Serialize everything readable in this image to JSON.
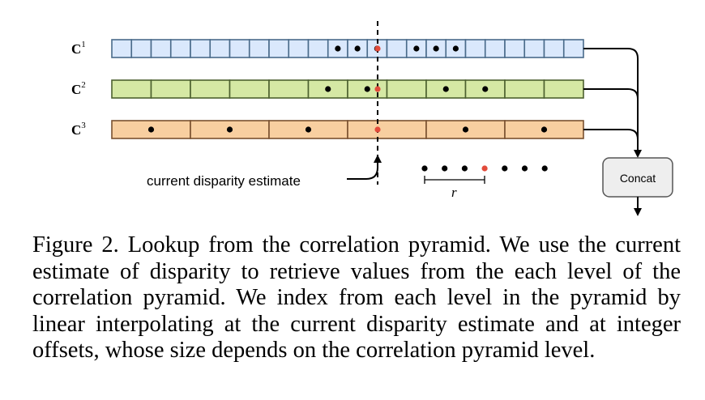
{
  "levels": [
    {
      "name": "C",
      "sup": "1",
      "cells": 24,
      "dots": [
        11,
        12,
        13,
        15,
        16,
        17
      ],
      "fill": "#dae8fc",
      "stroke": "#4a6b8a"
    },
    {
      "name": "C",
      "sup": "2",
      "cells": 12,
      "dots": [
        5,
        6,
        8,
        9
      ],
      "fill": "#d5e8a4",
      "stroke": "#4d6130"
    },
    {
      "name": "C",
      "sup": "3",
      "cells": 6,
      "dots": [
        0,
        1,
        2,
        4,
        5
      ],
      "fill": "#f8cfa0",
      "stroke": "#7a5130"
    }
  ],
  "colors": {
    "dot": "#000000",
    "red_dot": "#e24b3b",
    "concat_fill": "#eeeeee",
    "concat_stroke": "#555555"
  },
  "annotation": "current disparity estimate",
  "radius_label": "r",
  "concat_label": "Concat",
  "caption": "Figure 2. Lookup from the correlation pyramid. We use the current estimate of disparity to retrieve values from the each level of the correlation pyramid. We index from each level in the pyramid by linear interpolating at the current disparity estimate and at integer offsets, whose size depends on the correlation pyramid level."
}
